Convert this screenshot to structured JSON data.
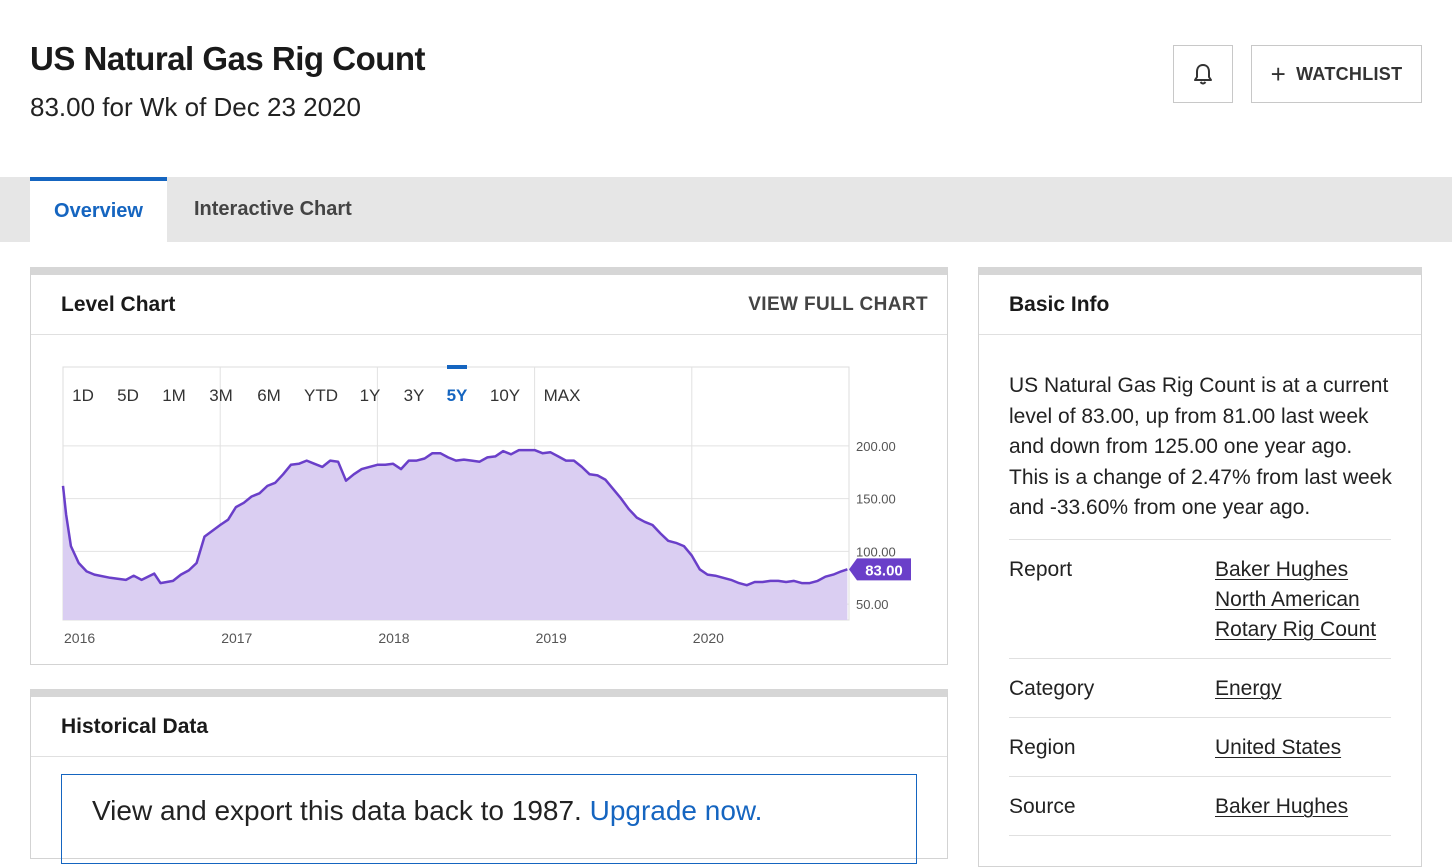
{
  "header": {
    "title": "US Natural Gas Rig Count",
    "subtitle": "83.00 for Wk of Dec 23 2020",
    "bell_icon": "bell-icon",
    "watchlist_label": "WATCHLIST",
    "watchlist_icon": "plus-icon"
  },
  "tabs": [
    {
      "label": "Overview",
      "active": true
    },
    {
      "label": "Interactive Chart",
      "active": false
    }
  ],
  "level_chart": {
    "title": "Level Chart",
    "view_full_label": "VIEW FULL CHART",
    "ranges": [
      "1D",
      "5D",
      "1M",
      "3M",
      "6M",
      "YTD",
      "1Y",
      "3Y",
      "5Y",
      "10Y",
      "MAX"
    ],
    "active_range": "5Y"
  },
  "chart_data": {
    "type": "area",
    "title": "",
    "xlabel": "",
    "ylabel": "",
    "x_ticks": [
      "2016",
      "2017",
      "2018",
      "2019",
      "2020"
    ],
    "y_ticks": [
      "200.00",
      "150.00",
      "100.00",
      "50.00"
    ],
    "ylim": [
      35,
      215
    ],
    "xlim": [
      2016.0,
      2021.0
    ],
    "grid": true,
    "line_color": "#6a3fc9",
    "fill_color": "#dacef2",
    "last_value_label": "83.00",
    "series": [
      {
        "x": [
          2016.0,
          2016.02,
          2016.05,
          2016.1,
          2016.15,
          2016.2,
          2016.3,
          2016.4,
          2016.45,
          2016.5,
          2016.58,
          2016.62,
          2016.7,
          2016.75,
          2016.8,
          2016.85,
          2016.9,
          2017.0,
          2017.05,
          2017.1,
          2017.15,
          2017.2,
          2017.25,
          2017.3,
          2017.35,
          2017.4,
          2017.45,
          2017.5,
          2017.55,
          2017.6,
          2017.65,
          2017.7,
          2017.75,
          2017.8,
          2017.85,
          2017.9,
          2017.95,
          2018.0,
          2018.05,
          2018.1,
          2018.15,
          2018.2,
          2018.25,
          2018.3,
          2018.35,
          2018.4,
          2018.45,
          2018.5,
          2018.55,
          2018.6,
          2018.65,
          2018.7,
          2018.75,
          2018.8,
          2018.85,
          2018.9,
          2018.95,
          2019.0,
          2019.05,
          2019.1,
          2019.15,
          2019.2,
          2019.25,
          2019.3,
          2019.35,
          2019.4,
          2019.45,
          2019.5,
          2019.55,
          2019.6,
          2019.65,
          2019.7,
          2019.75,
          2019.8,
          2019.85,
          2019.9,
          2019.95,
          2020.0,
          2020.05,
          2020.1,
          2020.15,
          2020.2,
          2020.25,
          2020.3,
          2020.35,
          2020.4,
          2020.45,
          2020.5,
          2020.55,
          2020.6,
          2020.65,
          2020.7,
          2020.75,
          2020.8,
          2020.85,
          2020.9,
          2020.95,
          2020.99
        ],
        "values": [
          162,
          135,
          105,
          89,
          81,
          78,
          75,
          73,
          77,
          73,
          79,
          70,
          72,
          78,
          82,
          89,
          114,
          125,
          130,
          142,
          146,
          152,
          155,
          162,
          165,
          173,
          182,
          183,
          186,
          183,
          180,
          186,
          185,
          167,
          173,
          178,
          180,
          182,
          182,
          183,
          178,
          186,
          186,
          188,
          193,
          193,
          189,
          186,
          187,
          186,
          185,
          189,
          190,
          195,
          192,
          196,
          196,
          196,
          193,
          194,
          190,
          186,
          186,
          180,
          173,
          172,
          168,
          159,
          150,
          140,
          132,
          128,
          125,
          117,
          110,
          108,
          105,
          96,
          83,
          78,
          77,
          75,
          73,
          70,
          68,
          71,
          71,
          72,
          72,
          71,
          72,
          70,
          70,
          72,
          76,
          78,
          81,
          83
        ]
      }
    ]
  },
  "historical": {
    "title": "Historical Data",
    "upgrade_text": "View and export this data back to 1987.",
    "upgrade_link": "Upgrade now."
  },
  "basic_info": {
    "title": "Basic Info",
    "description": "US Natural Gas Rig Count is at a current level of 83.00, up from 81.00 last week and down from 125.00 one year ago. This is a change of 2.47% from last week and -33.60% from one year ago.",
    "rows": [
      {
        "key": "Report",
        "value": "Baker Hughes North American Rotary Rig Count"
      },
      {
        "key": "Category",
        "value": "Energy"
      },
      {
        "key": "Region",
        "value": "United States"
      },
      {
        "key": "Source",
        "value": "Baker Hughes"
      }
    ]
  }
}
